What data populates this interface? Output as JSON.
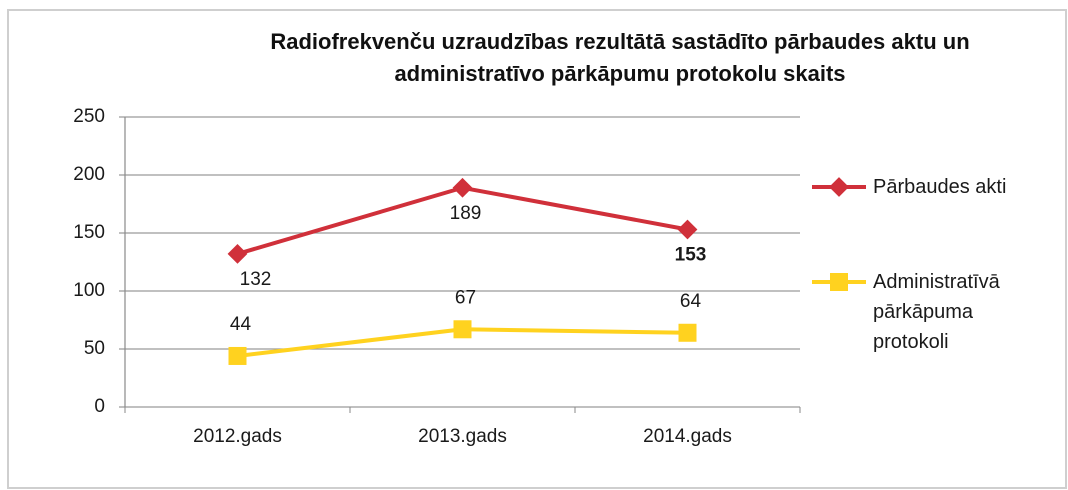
{
  "chart_data": {
    "type": "line",
    "title": "Radiofrekvenču uzraudzības rezultātā sastādīto pārbaudes aktu un administratīvo pārkāpumu protokolu skaits",
    "categories": [
      "2012.gads",
      "2013.gads",
      "2014.gads"
    ],
    "series": [
      {
        "name": "Pārbaudes akti",
        "color": "#d0303a",
        "values": [
          132,
          189,
          153
        ]
      },
      {
        "name": "Administratīvā pārkāpuma protokoli",
        "color": "#ffd21f",
        "values": [
          44,
          67,
          64
        ]
      }
    ],
    "ylim": [
      0,
      250
    ],
    "yticks": [
      0,
      50,
      100,
      150,
      200,
      250
    ],
    "grid": true,
    "legend": "right"
  }
}
